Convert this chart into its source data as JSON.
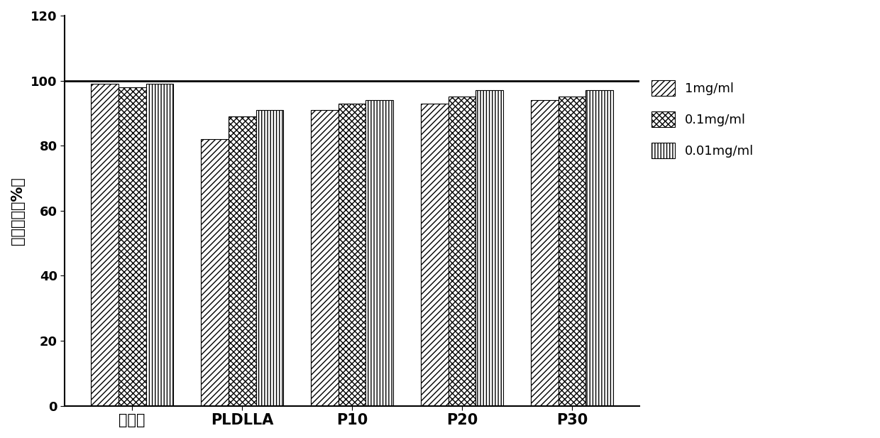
{
  "categories": [
    "对照组",
    "PLDLLA",
    "P10",
    "P20",
    "P30"
  ],
  "series": {
    "1mg/ml": [
      99,
      82,
      91,
      93,
      94
    ],
    "0.1mg/ml": [
      98,
      89,
      93,
      95,
      95
    ],
    "0.01mg/ml": [
      99,
      91,
      94,
      97,
      97
    ]
  },
  "ylabel": "细胞活性（%）",
  "ylim": [
    0,
    120
  ],
  "yticks": [
    0,
    20,
    40,
    60,
    80,
    100,
    120
  ],
  "legend_labels": [
    "1mg/ml",
    "0.1mg/ml",
    "0.01mg/ml"
  ],
  "hline_y": 100,
  "bar_width": 0.25,
  "background_color": "#ffffff"
}
